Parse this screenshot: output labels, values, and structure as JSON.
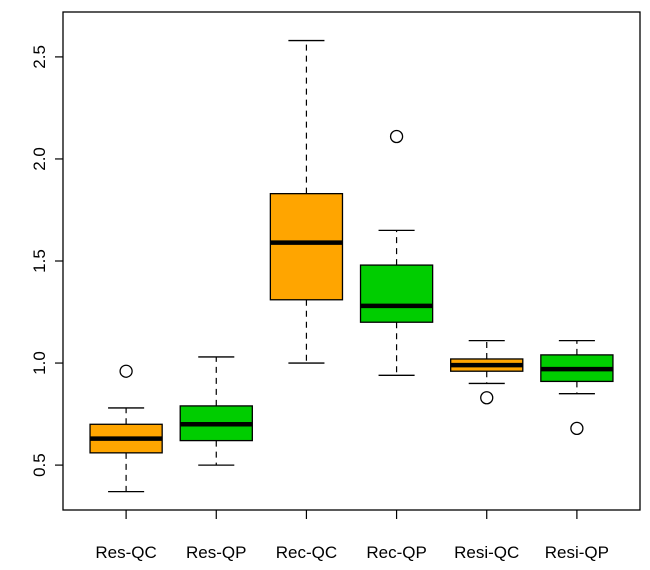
{
  "chart_data": {
    "type": "box",
    "title": "",
    "xlabel": "",
    "ylabel": "",
    "ylim": [
      0.28,
      2.72
    ],
    "yticks": [
      "0.5",
      "1.0",
      "1.5",
      "2.0",
      "2.5"
    ],
    "ytick_values": [
      0.5,
      1.0,
      1.5,
      2.0,
      2.5
    ],
    "categories": [
      "Res-QC",
      "Res-QP",
      "Rec-QC",
      "Rec-QP",
      "Resi-QC",
      "Resi-QP"
    ],
    "boxes": [
      {
        "label": "Res-QC",
        "whisker_low": 0.37,
        "q1": 0.56,
        "median": 0.63,
        "q3": 0.7,
        "whisker_high": 0.78,
        "outliers": [
          0.96
        ],
        "color": "#FFA500"
      },
      {
        "label": "Res-QP",
        "whisker_low": 0.5,
        "q1": 0.62,
        "median": 0.7,
        "q3": 0.79,
        "whisker_high": 1.03,
        "outliers": [],
        "color": "#00CD00"
      },
      {
        "label": "Rec-QC",
        "whisker_low": 1.0,
        "q1": 1.31,
        "median": 1.59,
        "q3": 1.83,
        "whisker_high": 2.58,
        "outliers": [],
        "color": "#FFA500"
      },
      {
        "label": "Rec-QP",
        "whisker_low": 0.94,
        "q1": 1.2,
        "median": 1.28,
        "q3": 1.48,
        "whisker_high": 1.65,
        "outliers": [
          2.11
        ],
        "color": "#00CD00"
      },
      {
        "label": "Resi-QC",
        "whisker_low": 0.9,
        "q1": 0.96,
        "median": 0.99,
        "q3": 1.02,
        "whisker_high": 1.11,
        "outliers": [
          0.83
        ],
        "color": "#FFA500"
      },
      {
        "label": "Resi-QP",
        "whisker_low": 0.85,
        "q1": 0.91,
        "median": 0.97,
        "q3": 1.04,
        "whisker_high": 1.11,
        "outliers": [
          0.68
        ],
        "color": "#00CD00"
      }
    ],
    "grid": false,
    "legend": "none"
  }
}
